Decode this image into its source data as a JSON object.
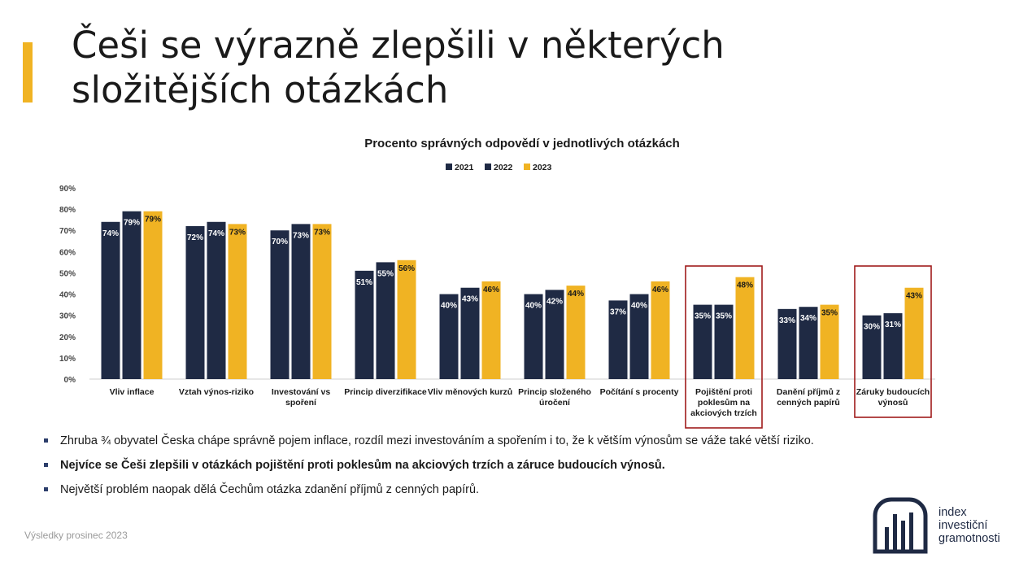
{
  "title": "Češi se výrazně zlepšili v některých složitějších otázkách",
  "colors": {
    "accent": "#f0b323",
    "navy": "#1f2a44",
    "highlight_box": "#a01c1c"
  },
  "chart_data": {
    "type": "bar",
    "title": "Procento správných odpovědí v jednotlivých otázkách",
    "categories": [
      "Vliv inflace",
      "Vztah výnos-riziko",
      "Investování vs spoření",
      "Princip diverzifikace",
      "Vliv měnových kurzů",
      "Princip složeného úročení",
      "Počítání s procenty",
      "Pojištění proti poklesům na akciových trzích",
      "Danění příjmů z cenných papírů",
      "Záruky budoucích výnosů"
    ],
    "category_lines": [
      [
        "Vliv inflace"
      ],
      [
        "Vztah výnos-riziko"
      ],
      [
        "Investování vs",
        "spoření"
      ],
      [
        "Princip diverzifikace"
      ],
      [
        "Vliv měnových kurzů"
      ],
      [
        "Princip složeného",
        "úročení"
      ],
      [
        "Počítání s procenty"
      ],
      [
        "Pojištění proti",
        "poklesům na",
        "akciových trzích"
      ],
      [
        "Danění příjmů z",
        "cenných papírů"
      ],
      [
        "Záruky budoucích",
        "výnosů"
      ]
    ],
    "series": [
      {
        "name": "2021",
        "color": "#1f2a44",
        "values": [
          74,
          72,
          70,
          51,
          40,
          40,
          37,
          35,
          33,
          30
        ]
      },
      {
        "name": "2022",
        "color": "#1f2a44",
        "values": [
          79,
          74,
          73,
          55,
          43,
          42,
          40,
          35,
          34,
          31
        ]
      },
      {
        "name": "2023",
        "color": "#f0b323",
        "values": [
          79,
          73,
          73,
          56,
          46,
          44,
          46,
          48,
          35,
          43
        ]
      }
    ],
    "ylim": [
      0,
      90
    ],
    "yticks": [
      "0%",
      "10%",
      "20%",
      "30%",
      "40%",
      "50%",
      "60%",
      "70%",
      "80%",
      "90%"
    ],
    "legend_position": "top-center",
    "grid": false,
    "highlighted_categories": [
      7,
      9
    ]
  },
  "bullets": [
    "Zhruba ¾ obyvatel Česka chápe správně pojem inflace, rozdíl mezi investováním a spořením i to, že k větším výnosům se váže také větší riziko.",
    "Nejvíce se Češi zlepšili v otázkách pojištění proti poklesům na akciových trzích a záruce budoucích výnosů.",
    "Největší problém naopak dělá Čechům otázka zdanění příjmů z cenných papírů."
  ],
  "footer": "Výsledky prosinec 2023",
  "logo": {
    "line1": "index",
    "line2": "investiční",
    "line3": "gramotnosti",
    "icon": "bar-chart-logo-icon"
  }
}
